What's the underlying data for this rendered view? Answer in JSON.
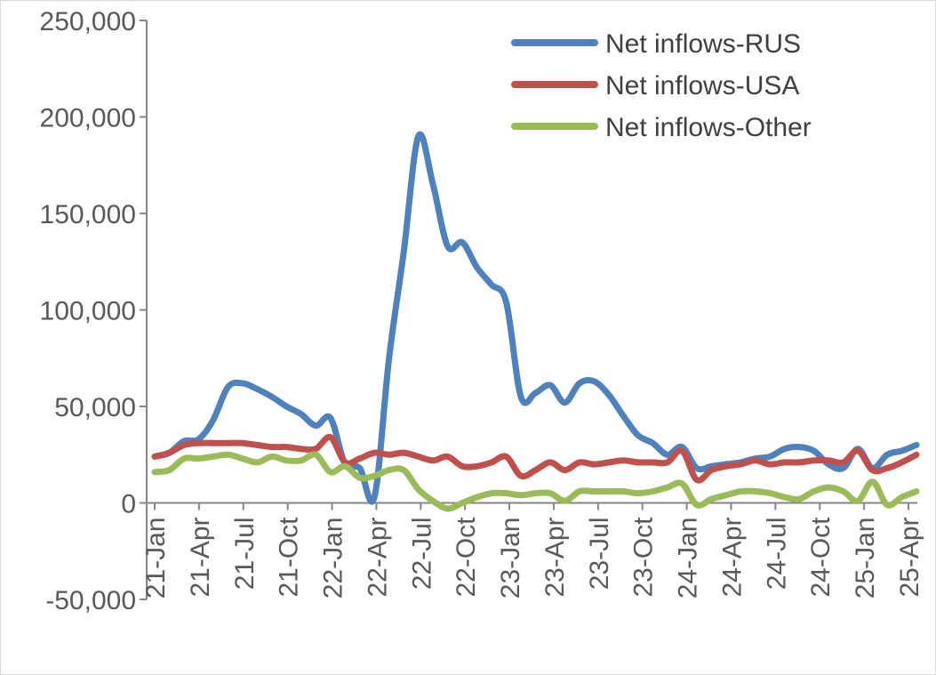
{
  "chart_data": {
    "type": "line",
    "title": "",
    "xlabel": "",
    "ylabel": "",
    "ylim": [
      -50000,
      250000
    ],
    "yticks": [
      250000,
      200000,
      150000,
      100000,
      50000,
      0,
      -50000
    ],
    "ytick_labels": [
      "250,000",
      "200,000",
      "150,000",
      "100,000",
      "50,000",
      "0",
      "-50,000"
    ],
    "x_tick_labels": [
      "21-Jan",
      "21-Apr",
      "21-Jul",
      "21-Oct",
      "22-Jan",
      "22-Apr",
      "22-Jul",
      "22-Oct",
      "23-Jan",
      "23-Apr",
      "23-Jul",
      "23-Oct",
      "24-Jan",
      "24-Apr",
      "24-Jul",
      "24-Oct",
      "25-Jan",
      "25-Apr"
    ],
    "grid": false,
    "legend_position": "top-right",
    "series": [
      {
        "name": "Net inflows-RUS",
        "color": "#4f81bd",
        "values": [
          24000,
          26000,
          32000,
          33000,
          43000,
          60000,
          62000,
          59000,
          55000,
          50000,
          46000,
          40000,
          44000,
          20000,
          18000,
          3000,
          75000,
          130000,
          190000,
          165000,
          133000,
          135000,
          122000,
          113000,
          104000,
          55000,
          57000,
          61000,
          52000,
          62000,
          63000,
          56000,
          45000,
          35000,
          31000,
          25000,
          29000,
          18000,
          19000,
          20000,
          21000,
          23000,
          24000,
          28000,
          29000,
          27000,
          20000,
          18000,
          28000,
          18000,
          25000,
          27000,
          30000
        ]
      },
      {
        "name": "Net inflows-USA",
        "color": "#c0504d",
        "values": [
          24000,
          26000,
          30000,
          31000,
          31000,
          31000,
          31000,
          30000,
          29000,
          29000,
          28000,
          28000,
          34000,
          21000,
          23000,
          26000,
          25000,
          26000,
          24000,
          22000,
          24000,
          19000,
          19000,
          21000,
          24000,
          14000,
          17000,
          21000,
          17000,
          21000,
          20000,
          21000,
          22000,
          21000,
          21000,
          21000,
          27000,
          12000,
          17000,
          19000,
          20000,
          22000,
          20000,
          21000,
          21000,
          22000,
          22000,
          21000,
          27000,
          17000,
          18000,
          21000,
          25000
        ]
      },
      {
        "name": "Net inflows-Other",
        "color": "#9bbb59",
        "values": [
          16000,
          17000,
          23000,
          23000,
          24000,
          25000,
          23000,
          21000,
          24000,
          22000,
          22000,
          25000,
          16000,
          19000,
          13000,
          14000,
          17000,
          17000,
          7000,
          1000,
          -3000,
          0,
          3000,
          5000,
          5000,
          4000,
          5000,
          5000,
          1000,
          6000,
          6000,
          6000,
          6000,
          5000,
          6000,
          8000,
          10000,
          -1000,
          2000,
          4000,
          6000,
          6000,
          5000,
          3000,
          2000,
          6000,
          8000,
          6000,
          1000,
          11000,
          -1000,
          3000,
          6000
        ]
      }
    ]
  }
}
